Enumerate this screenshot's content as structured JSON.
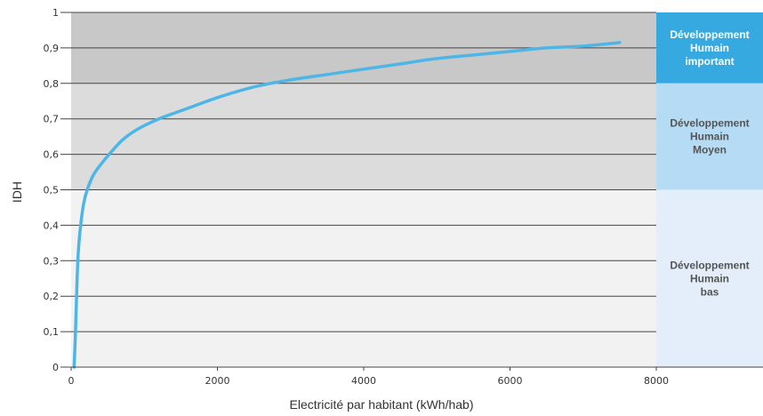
{
  "chart_data": {
    "type": "line",
    "xlabel": "Electricité par habitant (kWh/hab)",
    "ylabel": "IDH",
    "xlim": [
      0,
      9400
    ],
    "ylim": [
      0,
      1
    ],
    "x_ticks": [
      "0",
      "2000",
      "4000",
      "6000",
      "8000"
    ],
    "x_tick_values": [
      0,
      2000,
      4000,
      6000,
      8000
    ],
    "y_ticks": [
      "0",
      "0,1",
      "0,2",
      "0,3",
      "0,4",
      "0,5",
      "0,6",
      "0,7",
      "0,8",
      "0,9",
      "1"
    ],
    "y_tick_values": [
      0,
      0.1,
      0.2,
      0.3,
      0.4,
      0.5,
      0.6,
      0.7,
      0.8,
      0.9,
      1
    ],
    "grid": true,
    "series": [
      {
        "color": "#4db6e6",
        "x": [
          40,
          60,
          80,
          100,
          130,
          170,
          220,
          300,
          400,
          520,
          700,
          900,
          1200,
          1600,
          2000,
          2500,
          3000,
          3500,
          4000,
          4500,
          5000,
          5500,
          6000,
          6500,
          7000,
          7500
        ],
        "y": [
          0.0,
          0.1,
          0.24,
          0.33,
          0.4,
          0.46,
          0.5,
          0.54,
          0.57,
          0.6,
          0.64,
          0.67,
          0.7,
          0.73,
          0.76,
          0.79,
          0.81,
          0.825,
          0.84,
          0.855,
          0.87,
          0.88,
          0.89,
          0.9,
          0.905,
          0.915
        ]
      }
    ],
    "bands": [
      {
        "from": 0.8,
        "to": 1.0,
        "label_lines": [
          "Développement",
          "Humain",
          "important"
        ],
        "plot_color": "#c8c8c8",
        "side_color": "#36a9e1",
        "text_color": "#ffffff"
      },
      {
        "from": 0.5,
        "to": 0.8,
        "label_lines": [
          "Développement",
          "Humain",
          "Moyen"
        ],
        "plot_color": "#dcdcdc",
        "side_color": "#b5dcf4",
        "text_color": "#555555"
      },
      {
        "from": 0.0,
        "to": 0.5,
        "label_lines": [
          "Développement",
          "Humain",
          "bas"
        ],
        "plot_color": "#f2f2f2",
        "side_color": "#e3eefa",
        "text_color": "#555555"
      }
    ],
    "legend": "none"
  }
}
